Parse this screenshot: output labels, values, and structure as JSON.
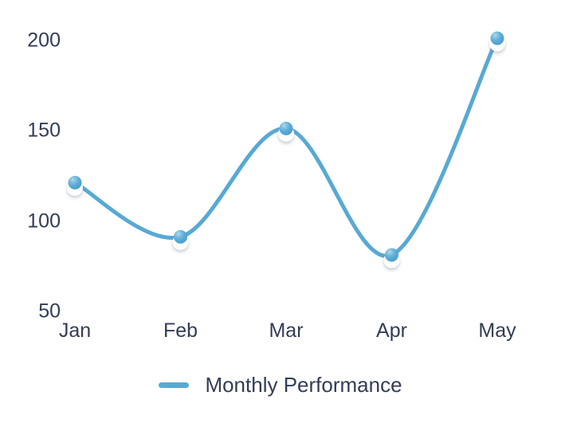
{
  "chart_data": {
    "type": "line",
    "title": "",
    "xlabel": "",
    "ylabel": "",
    "categories": [
      "Jan",
      "Feb",
      "Mar",
      "Apr",
      "May"
    ],
    "series": [
      {
        "name": "Monthly Performance",
        "values": [
          120,
          90,
          150,
          80,
          200
        ]
      }
    ],
    "yticks": [
      50,
      100,
      150,
      200
    ],
    "ylim": [
      50,
      200
    ],
    "grid": false,
    "axis_lines": false,
    "smooth": true,
    "legend_position": "bottom"
  },
  "colors": {
    "line": "#58A9D3",
    "marker_fill": "#4CA2CE",
    "marker_highlight": "#A9D8EC",
    "marker_base": "#FFFFFF",
    "text": "#323D55",
    "background": "#FFFFFF"
  }
}
